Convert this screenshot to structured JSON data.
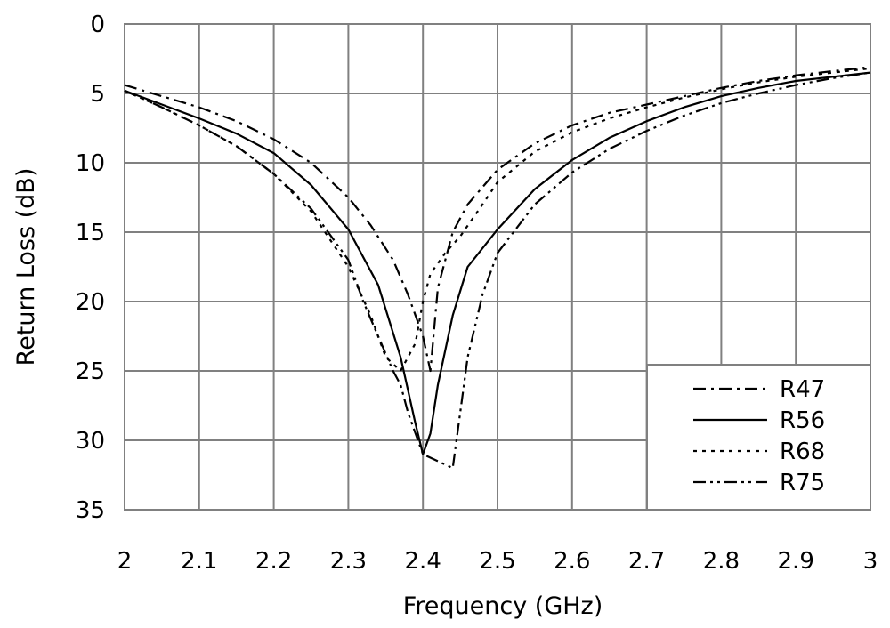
{
  "chart_data": {
    "type": "line",
    "title": "",
    "xlabel": "Frequency (GHz)",
    "ylabel": "Return Loss (dB)",
    "xlim": [
      2,
      3
    ],
    "ylim": [
      0,
      35
    ],
    "y_inverted": true,
    "grid": true,
    "legend_position": "bottom-right",
    "x_ticks": [
      "2",
      "2.1",
      "2.2",
      "2.3",
      "2.4",
      "2.5",
      "2.6",
      "2.7",
      "2.8",
      "2.9",
      "3"
    ],
    "y_ticks": [
      "0",
      "5",
      "10",
      "15",
      "20",
      "25",
      "30",
      "35"
    ],
    "colors": {
      "lines": "#000000",
      "grid": "#808080",
      "background": "#ffffff"
    },
    "series": [
      {
        "name": "R47",
        "dash": "dash-dot",
        "x": [
          2.0,
          2.05,
          2.1,
          2.15,
          2.2,
          2.25,
          2.3,
          2.33,
          2.36,
          2.38,
          2.4,
          2.41,
          2.42,
          2.44,
          2.46,
          2.5,
          2.55,
          2.6,
          2.65,
          2.7,
          2.75,
          2.8,
          2.85,
          2.9,
          2.95,
          3.0
        ],
        "y": [
          4.4,
          5.2,
          6.0,
          7.0,
          8.3,
          10.0,
          12.5,
          14.5,
          17.0,
          19.5,
          22.5,
          25.0,
          19.0,
          15.0,
          13.0,
          10.5,
          8.6,
          7.3,
          6.4,
          5.8,
          5.2,
          4.6,
          4.1,
          3.7,
          3.4,
          3.1
        ]
      },
      {
        "name": "R56",
        "dash": "solid",
        "x": [
          2.0,
          2.05,
          2.1,
          2.15,
          2.2,
          2.25,
          2.3,
          2.34,
          2.37,
          2.39,
          2.4,
          2.41,
          2.42,
          2.44,
          2.46,
          2.5,
          2.55,
          2.6,
          2.65,
          2.7,
          2.75,
          2.8,
          2.85,
          2.9,
          2.95,
          3.0
        ],
        "y": [
          4.8,
          5.8,
          6.8,
          7.9,
          9.3,
          11.6,
          14.8,
          18.8,
          24.0,
          28.8,
          31.0,
          29.5,
          26.0,
          21.0,
          17.5,
          14.8,
          11.9,
          9.8,
          8.2,
          7.0,
          6.0,
          5.2,
          4.6,
          4.1,
          3.8,
          3.5
        ]
      },
      {
        "name": "R68",
        "dash": "dotted",
        "x": [
          2.0,
          2.05,
          2.1,
          2.15,
          2.2,
          2.25,
          2.3,
          2.33,
          2.35,
          2.37,
          2.39,
          2.4,
          2.41,
          2.43,
          2.45,
          2.48,
          2.5,
          2.55,
          2.6,
          2.65,
          2.7,
          2.75,
          2.8,
          2.85,
          2.9,
          2.95,
          3.0
        ],
        "y": [
          4.8,
          6.0,
          7.3,
          8.8,
          10.8,
          13.5,
          17.5,
          21.0,
          24.0,
          25.0,
          23.0,
          20.0,
          18.0,
          16.5,
          15.3,
          13.0,
          11.4,
          9.2,
          7.8,
          6.8,
          6.0,
          5.3,
          4.7,
          4.2,
          3.8,
          3.5,
          3.2
        ]
      },
      {
        "name": "R75",
        "dash": "dash-dot-dot",
        "x": [
          2.0,
          2.05,
          2.1,
          2.15,
          2.2,
          2.25,
          2.3,
          2.32,
          2.34,
          2.36,
          2.37,
          2.38,
          2.4,
          2.42,
          2.44,
          2.46,
          2.48,
          2.5,
          2.55,
          2.6,
          2.65,
          2.7,
          2.75,
          2.8,
          2.85,
          2.9,
          2.95,
          3.0
        ],
        "y": [
          4.8,
          6.0,
          7.3,
          8.8,
          10.8,
          13.3,
          17.0,
          20.0,
          22.5,
          25.0,
          26.0,
          28.0,
          31.0,
          31.5,
          32.0,
          24.0,
          19.5,
          16.5,
          13.0,
          10.7,
          9.0,
          7.7,
          6.6,
          5.7,
          5.0,
          4.4,
          3.9,
          3.5
        ]
      }
    ]
  }
}
